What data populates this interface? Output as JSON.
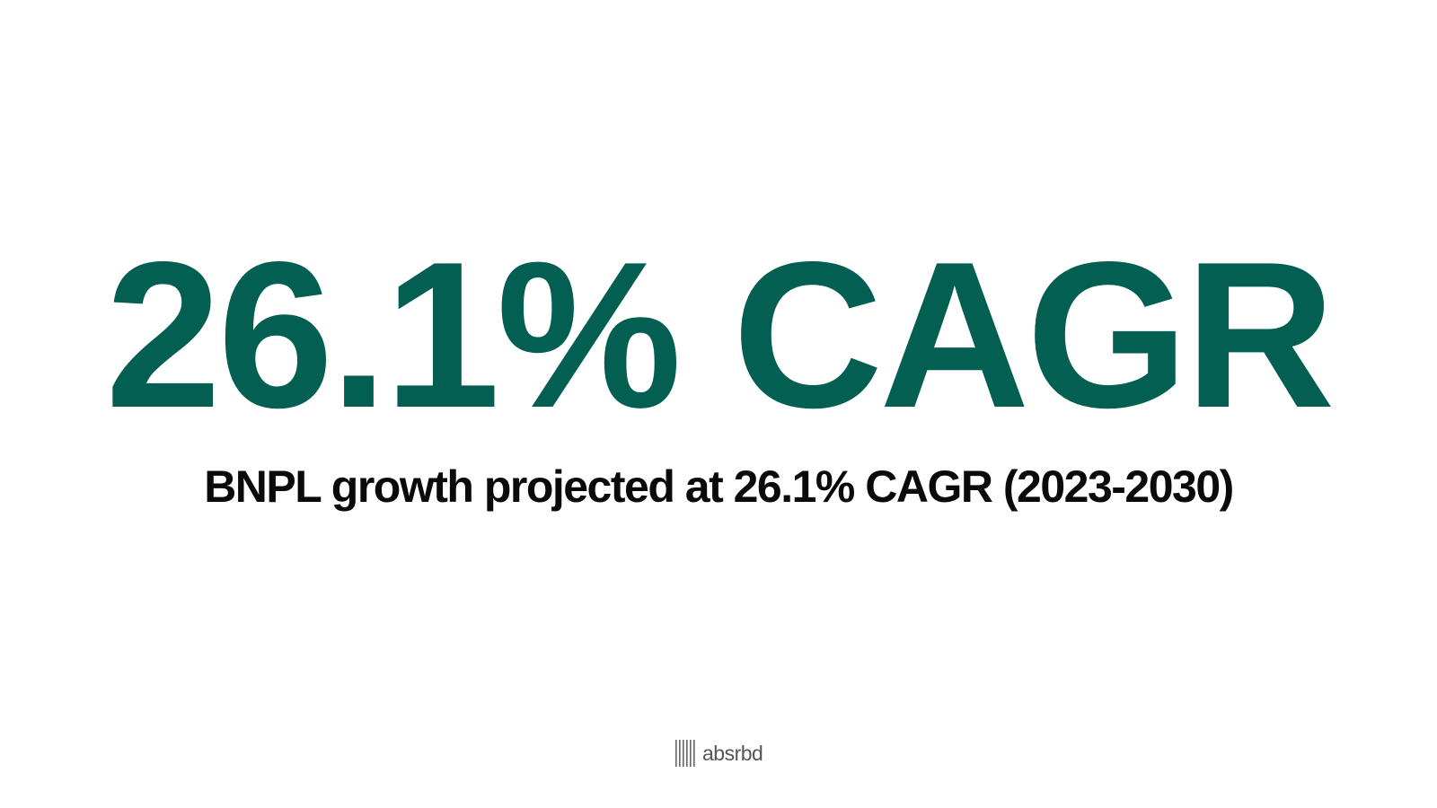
{
  "slide": {
    "headline": "26.1% CAGR",
    "subheadline": "BNPL growth projected at 26.1% CAGR (2023-2030)"
  },
  "logo": {
    "text": "absrbd",
    "icon": "barcode-stripes-icon"
  },
  "colors": {
    "accent": "#035f52",
    "text": "#0a0a0a",
    "logo": "#555555",
    "background": "#ffffff"
  }
}
